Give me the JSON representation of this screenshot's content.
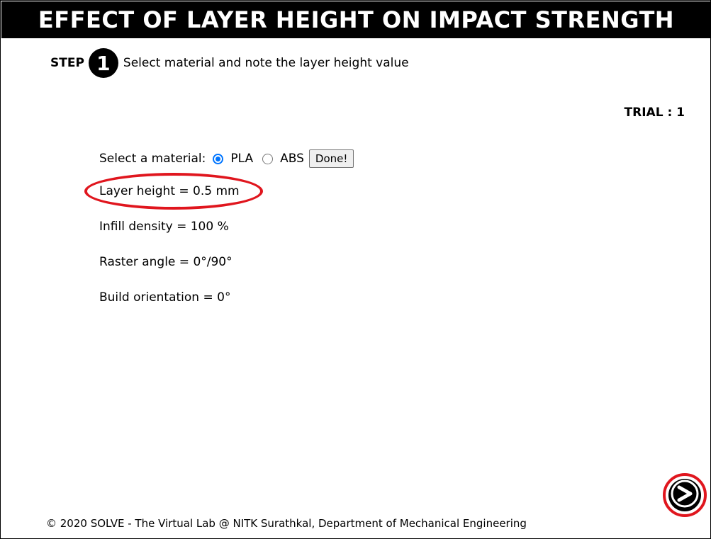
{
  "title": "EFFECT OF LAYER HEIGHT ON IMPACT STRENGTH",
  "step": {
    "label": "STEP",
    "number": "1",
    "instruction": "Select material and note the layer height value"
  },
  "trial": "TRIAL : 1",
  "material": {
    "label": "Select a material:",
    "options": [
      {
        "label": "PLA",
        "selected": true
      },
      {
        "label": "ABS",
        "selected": false
      }
    ],
    "done_label": "Done!"
  },
  "parameters": {
    "layer_height": "Layer height = 0.5 mm",
    "infill_density": "Infill density = 100 %",
    "raster_angle": "Raster angle = 0°/90°",
    "build_orientation": "Build orientation = 0°"
  },
  "colors": {
    "title_bg": "#000000",
    "highlight": "#e0161e",
    "radio_accent": "#0075ff"
  },
  "icons": {
    "next": "right-arrow-icon"
  },
  "footer": "© 2020 SOLVE - The Virtual Lab @ NITK Surathkal, Department of Mechanical Engineering"
}
